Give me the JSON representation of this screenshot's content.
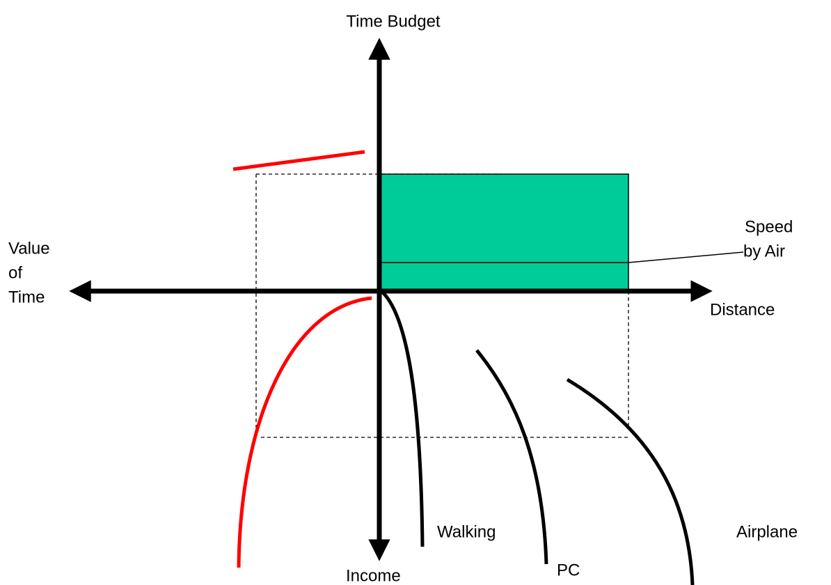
{
  "axes": {
    "top": "Time Budget",
    "left": [
      "Value",
      "of",
      "Time"
    ],
    "right": "Distance",
    "bottom": "Income"
  },
  "curves": {
    "walking": "Walking",
    "pc": "PC",
    "airplane": "Airplane"
  },
  "annotation": [
    "Speed",
    "by Air"
  ]
}
